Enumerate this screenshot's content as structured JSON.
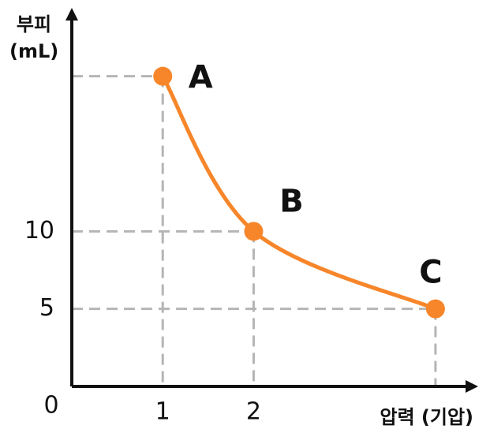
{
  "chart_data": {
    "type": "line",
    "xlabel": "압력 (기압)",
    "ylabel": "부피 (mL)",
    "x": [
      1,
      2,
      4
    ],
    "series": [
      {
        "color": "#f7862a",
        "values": [
          20,
          10,
          5
        ],
        "labels": [
          "A",
          "B",
          "C"
        ]
      }
    ],
    "xlim": [
      0,
      4.4
    ],
    "ylim": [
      0,
      24
    ],
    "xticks": [
      0,
      1,
      2
    ],
    "yticks": [
      5,
      10
    ]
  }
}
